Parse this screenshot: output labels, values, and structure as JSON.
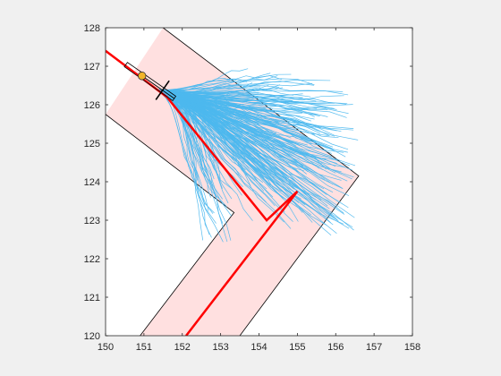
{
  "chart_data": {
    "type": "line",
    "title": "",
    "xlabel": "",
    "ylabel": "",
    "xlim": [
      150,
      158
    ],
    "ylim": [
      120,
      128
    ],
    "xticks": [
      "150",
      "151",
      "152",
      "153",
      "154",
      "155",
      "156",
      "157",
      "158"
    ],
    "yticks": [
      "120",
      "121",
      "122",
      "123",
      "124",
      "125",
      "126",
      "127",
      "128"
    ],
    "grid": false,
    "colors": {
      "figure_background": "#f0f0f0",
      "plot_background": "#ffffff",
      "corridor_fill": "#ffe0e0",
      "boundary": "#000000",
      "centerline": "#ff0000",
      "trajectories": "#4db8ee",
      "vehicle_marker": "#f0b42a"
    },
    "corridor": {
      "left_boundary": [
        [
          150,
          125.75
        ],
        [
          153.35,
          123.2
        ],
        [
          150.9,
          120
        ]
      ],
      "right_boundary": [
        [
          151.5,
          128
        ],
        [
          156.6,
          124.15
        ],
        [
          153.5,
          120
        ]
      ],
      "centerline": [
        [
          150,
          127.4
        ],
        [
          151.6,
          126.2
        ],
        [
          154.2,
          123.0
        ],
        [
          155.0,
          123.75
        ],
        [
          152.1,
          120
        ]
      ]
    },
    "trajectory_bundle": {
      "origin": [
        151.3,
        126.4
      ],
      "count": 240,
      "x_range_end": [
        152.4,
        156.6
      ],
      "y_range_end": [
        122.3,
        127.2
      ]
    },
    "vehicle": {
      "position": [
        150.95,
        126.75
      ],
      "heading_deg": -35
    }
  }
}
